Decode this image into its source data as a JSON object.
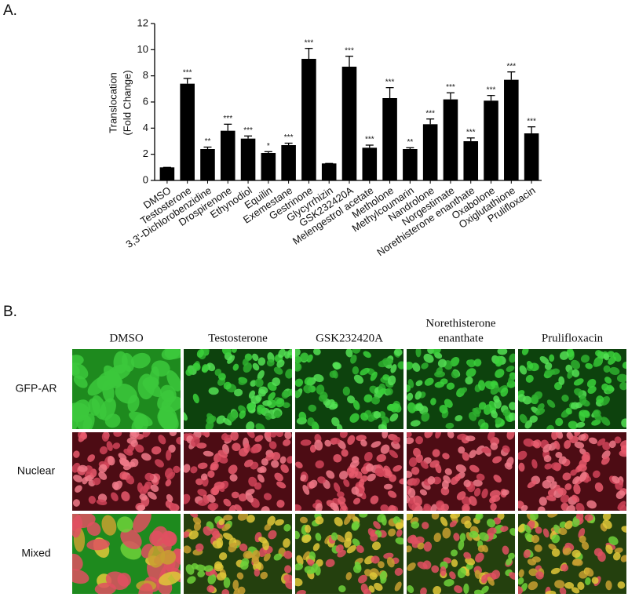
{
  "panel_labels": [
    "A.",
    "B."
  ],
  "chart_data": {
    "type": "bar",
    "ylabel": [
      "Translocation",
      "(Fold Change)"
    ],
    "categories": [
      "DMSO",
      "Testosterone",
      "3,3'-Dichlorobenzidine",
      "Drospirenone",
      "Ethynodiol",
      "Equilin",
      "Exemestane",
      "Gestrinone",
      "Glycyrrhizin",
      "GSK232420A",
      "Melengestrol acetate",
      "Metholone",
      "Methylcoumarin",
      "Nandrolone",
      "Norgestimate",
      "Norethisterone enanthate",
      "Oxabolone",
      "Oxiglutathione",
      "Prulifloxacin"
    ],
    "values": [
      1.0,
      7.4,
      2.4,
      3.8,
      3.2,
      2.1,
      2.7,
      9.3,
      1.3,
      8.7,
      2.5,
      6.3,
      2.4,
      4.3,
      6.2,
      3.0,
      6.1,
      7.7,
      3.6
    ],
    "errors": [
      0.0,
      0.4,
      0.15,
      0.5,
      0.2,
      0.1,
      0.15,
      0.8,
      0.0,
      0.8,
      0.2,
      0.8,
      0.1,
      0.4,
      0.5,
      0.25,
      0.4,
      0.6,
      0.5
    ],
    "annotations": [
      null,
      "***",
      "**",
      "***",
      "***",
      "*",
      "***",
      "***",
      null,
      "***",
      "***",
      "***",
      "**",
      "***",
      "***",
      "***",
      "***",
      "***",
      "***"
    ],
    "color": "#000000",
    "ylim": [
      0,
      12
    ],
    "yticks": [
      0,
      2,
      4,
      6,
      8,
      10,
      12
    ],
    "grid": false
  },
  "image_panel": {
    "columns": [
      [
        "DMSO"
      ],
      [
        "Testosterone"
      ],
      [
        "GSK232420A"
      ],
      [
        "Norethisterone",
        "enanthate"
      ],
      [
        "Prulifloxacin"
      ]
    ],
    "rows": [
      "GFP-AR",
      "Nuclear",
      "Mixed"
    ]
  }
}
